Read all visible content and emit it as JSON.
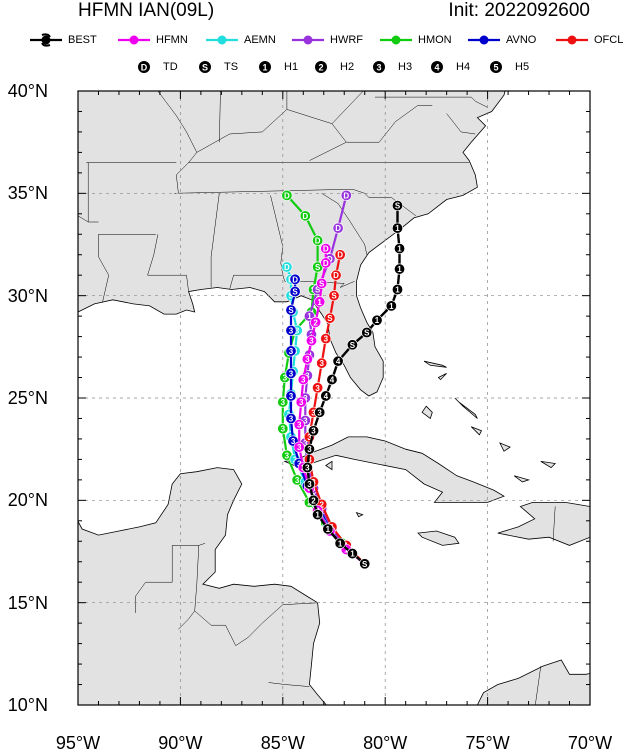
{
  "header": {
    "title_left": "HFMN IAN(09L)",
    "title_right": "Init: 2022092600"
  },
  "legend": {
    "models": [
      {
        "name": "BEST",
        "color": "#000000"
      },
      {
        "name": "HFMN",
        "color": "#ee00ee"
      },
      {
        "name": "AEMN",
        "color": "#22dddd"
      },
      {
        "name": "HWRF",
        "color": "#9933dd"
      },
      {
        "name": "HMON",
        "color": "#11cc11"
      },
      {
        "name": "AVNO",
        "color": "#0000cc"
      },
      {
        "name": "OFCL",
        "color": "#ee1111"
      }
    ],
    "intensity": [
      {
        "symbol": "D",
        "label": "TD"
      },
      {
        "symbol": "S",
        "label": "TS"
      },
      {
        "symbol": "1",
        "label": "H1"
      },
      {
        "symbol": "2",
        "label": "H2"
      },
      {
        "symbol": "3",
        "label": "H3"
      },
      {
        "symbol": "4",
        "label": "H4"
      },
      {
        "symbol": "5",
        "label": "H5"
      }
    ]
  },
  "map": {
    "lon_range": [
      -95,
      -70
    ],
    "lat_range": [
      10,
      40
    ],
    "lon_ticks": [
      "95°W",
      "90°W",
      "85°W",
      "80°W",
      "75°W",
      "70°W"
    ],
    "lat_ticks": [
      "40°N",
      "35°N",
      "30°N",
      "25°N",
      "20°N",
      "15°N",
      "10°N"
    ],
    "grid": "dashed at 5° intervals",
    "land_color": "#e2e2e2",
    "ocean_color": "#ffffff"
  },
  "tracks": [
    {
      "model": "BEST",
      "points": [
        [
          16.9,
          -81.0,
          "S"
        ],
        [
          17.4,
          -81.6,
          "1"
        ],
        [
          17.9,
          -82.2,
          "1"
        ],
        [
          18.6,
          -82.8,
          "1"
        ],
        [
          19.3,
          -83.3,
          "1"
        ],
        [
          20.0,
          -83.5,
          "2"
        ],
        [
          20.8,
          -83.7,
          "3"
        ],
        [
          21.6,
          -83.8,
          "3"
        ],
        [
          22.5,
          -83.7,
          "3"
        ],
        [
          23.4,
          -83.5,
          "3"
        ],
        [
          24.3,
          -83.2,
          "3"
        ],
        [
          25.1,
          -82.9,
          "4"
        ],
        [
          25.9,
          -82.6,
          "4"
        ],
        [
          26.8,
          -82.3,
          "4"
        ],
        [
          27.6,
          -81.6,
          "S"
        ],
        [
          28.2,
          -80.9,
          "S"
        ],
        [
          28.8,
          -80.4,
          "1"
        ],
        [
          29.5,
          -79.7,
          "1"
        ],
        [
          30.3,
          -79.4,
          "1"
        ],
        [
          31.3,
          -79.3,
          "1"
        ],
        [
          32.3,
          -79.3,
          "1"
        ],
        [
          33.3,
          -79.4,
          "1"
        ],
        [
          34.4,
          -79.4,
          "S"
        ]
      ]
    },
    {
      "model": "HFMN",
      "points": [
        [
          16.9,
          -81.0,
          "S"
        ],
        [
          17.6,
          -81.9,
          "1"
        ],
        [
          18.5,
          -82.7,
          "1"
        ],
        [
          19.5,
          -83.3,
          "2"
        ],
        [
          20.6,
          -83.7,
          "3"
        ],
        [
          21.6,
          -84.0,
          "3"
        ],
        [
          22.6,
          -84.2,
          "3"
        ],
        [
          23.7,
          -84.2,
          "3"
        ],
        [
          24.8,
          -84.1,
          "3"
        ],
        [
          25.9,
          -84.0,
          "3"
        ],
        [
          26.9,
          -83.8,
          "3"
        ],
        [
          27.8,
          -83.6,
          "3"
        ],
        [
          28.7,
          -83.4,
          "2"
        ],
        [
          29.7,
          -83.2,
          "1"
        ],
        [
          30.6,
          -83.1,
          "S"
        ],
        [
          31.6,
          -82.9,
          "D"
        ],
        [
          32.3,
          -82.9,
          "D"
        ]
      ]
    },
    {
      "model": "AEMN",
      "points": [
        [
          16.9,
          -81.0,
          "S"
        ],
        [
          17.8,
          -82.0,
          "1"
        ],
        [
          18.8,
          -82.8,
          "1"
        ],
        [
          19.8,
          -83.3,
          "2"
        ],
        [
          20.9,
          -83.9,
          "3"
        ],
        [
          22.0,
          -84.4,
          "3"
        ],
        [
          23.1,
          -84.6,
          "3"
        ],
        [
          24.2,
          -84.7,
          "3"
        ],
        [
          25.2,
          -84.6,
          "3"
        ],
        [
          26.3,
          -84.5,
          "3"
        ],
        [
          27.3,
          -84.4,
          "3"
        ],
        [
          28.3,
          -84.3,
          "3"
        ],
        [
          29.2,
          -84.5,
          "S"
        ],
        [
          30.0,
          -84.6,
          "S"
        ],
        [
          30.8,
          -84.6,
          "D"
        ],
        [
          31.4,
          -84.8,
          "D"
        ]
      ]
    },
    {
      "model": "HWRF",
      "points": [
        [
          16.9,
          -81.0,
          "S"
        ],
        [
          17.7,
          -81.9,
          "1"
        ],
        [
          18.6,
          -82.6,
          "1"
        ],
        [
          19.6,
          -83.1,
          "2"
        ],
        [
          20.6,
          -83.5,
          "3"
        ],
        [
          21.7,
          -83.8,
          "3"
        ],
        [
          22.8,
          -83.9,
          "3"
        ],
        [
          23.9,
          -83.9,
          "3"
        ],
        [
          25.0,
          -83.9,
          "3"
        ],
        [
          26.1,
          -83.8,
          "3"
        ],
        [
          27.1,
          -83.7,
          "3"
        ],
        [
          28.1,
          -83.6,
          "2"
        ],
        [
          29.0,
          -83.7,
          "1"
        ],
        [
          30.3,
          -83.3,
          "S"
        ],
        [
          31.8,
          -82.7,
          "D"
        ],
        [
          33.3,
          -82.3,
          "D"
        ],
        [
          34.9,
          -81.9,
          "D"
        ]
      ]
    },
    {
      "model": "HMON",
      "points": [
        [
          16.9,
          -81.0,
          "S"
        ],
        [
          17.9,
          -82.1,
          "1"
        ],
        [
          18.9,
          -82.9,
          "1"
        ],
        [
          19.9,
          -83.7,
          "2"
        ],
        [
          21.0,
          -84.3,
          "3"
        ],
        [
          22.2,
          -84.8,
          "3"
        ],
        [
          23.5,
          -85.0,
          "3"
        ],
        [
          24.8,
          -85.0,
          "3"
        ],
        [
          26.0,
          -84.9,
          "3"
        ],
        [
          27.2,
          -84.7,
          "3"
        ],
        [
          28.3,
          -84.4,
          "3"
        ],
        [
          29.2,
          -83.6,
          "2"
        ],
        [
          30.3,
          -83.5,
          "S"
        ],
        [
          31.4,
          -83.3,
          "S"
        ],
        [
          32.7,
          -83.3,
          "D"
        ],
        [
          33.9,
          -83.9,
          "D"
        ],
        [
          34.9,
          -84.8,
          "D"
        ]
      ]
    },
    {
      "model": "AVNO",
      "points": [
        [
          16.9,
          -81.0,
          "S"
        ],
        [
          17.7,
          -81.9,
          "1"
        ],
        [
          18.6,
          -82.6,
          "1"
        ],
        [
          19.6,
          -83.2,
          "2"
        ],
        [
          20.7,
          -83.8,
          "3"
        ],
        [
          21.8,
          -84.2,
          "3"
        ],
        [
          22.9,
          -84.5,
          "3"
        ],
        [
          24.0,
          -84.6,
          "3"
        ],
        [
          25.1,
          -84.6,
          "3"
        ],
        [
          26.2,
          -84.6,
          "3"
        ],
        [
          27.3,
          -84.6,
          "3"
        ],
        [
          28.3,
          -84.6,
          "3"
        ],
        [
          29.3,
          -84.6,
          "S"
        ],
        [
          30.2,
          -84.4,
          "S"
        ],
        [
          30.8,
          -84.4,
          "D"
        ]
      ]
    },
    {
      "model": "OFCL",
      "points": [
        [
          16.9,
          -81.0,
          "S"
        ],
        [
          17.8,
          -81.9,
          "1"
        ],
        [
          18.7,
          -82.6,
          "1"
        ],
        [
          19.8,
          -83.1,
          "2"
        ],
        [
          20.9,
          -83.5,
          "3"
        ],
        [
          22.0,
          -83.7,
          "3"
        ],
        [
          23.1,
          -83.7,
          "3"
        ],
        [
          24.3,
          -83.5,
          "3"
        ],
        [
          25.5,
          -83.3,
          "3"
        ],
        [
          26.7,
          -83.1,
          "3"
        ],
        [
          27.9,
          -82.9,
          "3"
        ],
        [
          28.9,
          -82.7,
          "S"
        ],
        [
          30.0,
          -82.5,
          "S"
        ],
        [
          31.0,
          -82.4,
          "D"
        ],
        [
          32.0,
          -82.2,
          "D"
        ]
      ]
    }
  ]
}
